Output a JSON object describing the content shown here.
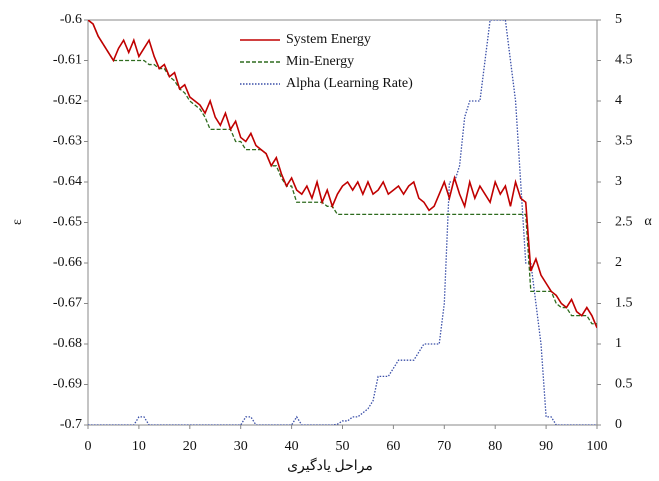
{
  "chart_data": {
    "type": "line",
    "x_label": "مراحل یادگیری",
    "y_label": "ε",
    "y2_label": "α",
    "x": [
      0,
      1,
      2,
      3,
      4,
      5,
      6,
      7,
      8,
      9,
      10,
      11,
      12,
      13,
      14,
      15,
      16,
      17,
      18,
      19,
      20,
      21,
      22,
      23,
      24,
      25,
      26,
      27,
      28,
      29,
      30,
      31,
      32,
      33,
      34,
      35,
      36,
      37,
      38,
      39,
      40,
      41,
      42,
      43,
      44,
      45,
      46,
      47,
      48,
      49,
      50,
      51,
      52,
      53,
      54,
      55,
      56,
      57,
      58,
      59,
      60,
      61,
      62,
      63,
      64,
      65,
      66,
      67,
      68,
      69,
      70,
      71,
      72,
      73,
      74,
      75,
      76,
      77,
      78,
      79,
      80,
      81,
      82,
      83,
      84,
      85,
      86,
      87,
      88,
      89,
      90,
      91,
      92,
      93,
      94,
      95,
      96,
      97,
      98,
      99,
      100
    ],
    "xlim": [
      0,
      100
    ],
    "xticks": [
      0,
      10,
      20,
      30,
      40,
      50,
      60,
      70,
      80,
      90,
      100
    ],
    "ylim": [
      -0.7,
      -0.6
    ],
    "yticks": [
      -0.6,
      -0.61,
      -0.62,
      -0.63,
      -0.64,
      -0.65,
      -0.66,
      -0.67,
      -0.68,
      -0.69,
      -0.7
    ],
    "y2lim": [
      0,
      5
    ],
    "y2ticks": [
      0,
      0.5,
      1,
      1.5,
      2,
      2.5,
      3,
      3.5,
      4,
      4.5,
      5
    ],
    "series": [
      {
        "name": "System Energy",
        "color": "#c00000",
        "dash": "solid",
        "values": [
          -0.6,
          -0.601,
          -0.604,
          -0.606,
          -0.608,
          -0.61,
          -0.607,
          -0.605,
          -0.608,
          -0.605,
          -0.609,
          -0.607,
          -0.605,
          -0.609,
          -0.612,
          -0.611,
          -0.614,
          -0.613,
          -0.617,
          -0.616,
          -0.619,
          -0.62,
          -0.621,
          -0.623,
          -0.62,
          -0.624,
          -0.626,
          -0.623,
          -0.627,
          -0.625,
          -0.629,
          -0.63,
          -0.628,
          -0.631,
          -0.632,
          -0.633,
          -0.636,
          -0.634,
          -0.638,
          -0.641,
          -0.639,
          -0.642,
          -0.643,
          -0.641,
          -0.644,
          -0.64,
          -0.645,
          -0.642,
          -0.646,
          -0.643,
          -0.641,
          -0.64,
          -0.642,
          -0.64,
          -0.643,
          -0.64,
          -0.643,
          -0.642,
          -0.64,
          -0.643,
          -0.642,
          -0.641,
          -0.643,
          -0.641,
          -0.64,
          -0.644,
          -0.645,
          -0.647,
          -0.646,
          -0.643,
          -0.64,
          -0.644,
          -0.639,
          -0.643,
          -0.646,
          -0.64,
          -0.644,
          -0.641,
          -0.643,
          -0.645,
          -0.64,
          -0.643,
          -0.641,
          -0.646,
          -0.64,
          -0.644,
          -0.645,
          -0.662,
          -0.659,
          -0.663,
          -0.665,
          -0.667,
          -0.668,
          -0.67,
          -0.671,
          -0.669,
          -0.672,
          -0.673,
          -0.671,
          -0.673,
          -0.676
        ]
      },
      {
        "name": "Min-Energy",
        "color": "#2e6b1e",
        "dash": "dashed",
        "values": [
          -0.6,
          -0.601,
          -0.604,
          -0.606,
          -0.608,
          -0.61,
          -0.61,
          -0.61,
          -0.61,
          -0.61,
          -0.61,
          -0.61,
          -0.611,
          -0.611,
          -0.612,
          -0.612,
          -0.614,
          -0.615,
          -0.617,
          -0.618,
          -0.62,
          -0.621,
          -0.622,
          -0.624,
          -0.627,
          -0.627,
          -0.627,
          -0.627,
          -0.627,
          -0.63,
          -0.63,
          -0.632,
          -0.632,
          -0.632,
          -0.632,
          -0.633,
          -0.636,
          -0.636,
          -0.639,
          -0.641,
          -0.641,
          -0.645,
          -0.645,
          -0.645,
          -0.645,
          -0.645,
          -0.645,
          -0.646,
          -0.646,
          -0.648,
          -0.648,
          -0.648,
          -0.648,
          -0.648,
          -0.648,
          -0.648,
          -0.648,
          -0.648,
          -0.648,
          -0.648,
          -0.648,
          -0.648,
          -0.648,
          -0.648,
          -0.648,
          -0.648,
          -0.648,
          -0.648,
          -0.648,
          -0.648,
          -0.648,
          -0.648,
          -0.648,
          -0.648,
          -0.648,
          -0.648,
          -0.648,
          -0.648,
          -0.648,
          -0.648,
          -0.648,
          -0.648,
          -0.648,
          -0.648,
          -0.648,
          -0.648,
          -0.648,
          -0.667,
          -0.667,
          -0.667,
          -0.667,
          -0.667,
          -0.67,
          -0.671,
          -0.671,
          -0.673,
          -0.673,
          -0.673,
          -0.673,
          -0.675,
          -0.675
        ]
      },
      {
        "name": "Alpha (Learning Rate)",
        "color": "#3a4fa8",
        "dash": "dotted",
        "axis": "y2",
        "values": [
          0,
          0,
          0,
          0,
          0,
          0,
          0,
          0,
          0,
          0,
          0.1,
          0.1,
          0,
          0,
          0,
          0,
          0,
          0,
          0,
          0,
          0,
          0,
          0,
          0,
          0,
          0,
          0,
          0,
          0,
          0,
          0,
          0.1,
          0.1,
          0,
          0,
          0,
          0,
          0,
          0,
          0,
          0,
          0.1,
          0,
          0,
          0,
          0,
          0,
          0,
          0,
          0.01,
          0.05,
          0.05,
          0.1,
          0.1,
          0.15,
          0.2,
          0.3,
          0.6,
          0.6,
          0.6,
          0.7,
          0.8,
          0.8,
          0.8,
          0.8,
          0.9,
          1,
          1,
          1,
          1,
          1.5,
          3,
          3,
          3.2,
          3.8,
          4,
          4,
          4,
          4.5,
          5,
          5,
          5,
          5,
          4.5,
          4,
          3,
          2,
          2,
          1.5,
          1,
          0.1,
          0.1,
          0,
          0,
          0,
          0,
          0,
          0,
          0,
          0,
          0
        ]
      }
    ],
    "legend": "top-center"
  }
}
